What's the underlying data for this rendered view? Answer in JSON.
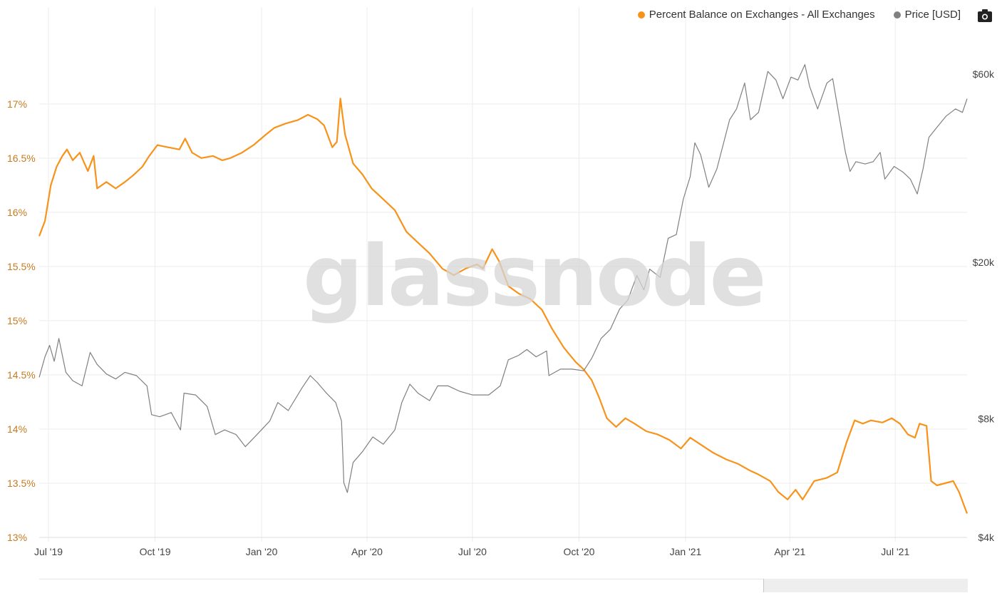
{
  "legend": {
    "series1_label": "Percent Balance on Exchanges - All Exchanges",
    "series2_label": "Price [USD]"
  },
  "watermark": "glassnode",
  "colors": {
    "balance": "#f7931a",
    "price": "#808080",
    "grid": "#ececec",
    "left_axis_text": "#c77a1f",
    "right_axis_text": "#444444"
  },
  "chart_data": {
    "type": "line",
    "x_range": [
      "2019-06-23",
      "2021-09-01"
    ],
    "x_ticks": [
      {
        "date": "2019-07-01",
        "label": "Jul '19"
      },
      {
        "date": "2019-10-01",
        "label": "Oct '19"
      },
      {
        "date": "2020-01-01",
        "label": "Jan '20"
      },
      {
        "date": "2020-04-01",
        "label": "Apr '20"
      },
      {
        "date": "2020-07-01",
        "label": "Jul '20"
      },
      {
        "date": "2020-10-01",
        "label": "Oct '20"
      },
      {
        "date": "2021-01-01",
        "label": "Jan '21"
      },
      {
        "date": "2021-04-01",
        "label": "Apr '21"
      },
      {
        "date": "2021-07-01",
        "label": "Jul '21"
      }
    ],
    "left_axis": {
      "min": 13,
      "max": 17.4,
      "ticks": [
        13,
        13.5,
        14,
        14.5,
        15,
        15.5,
        16,
        16.5,
        17
      ],
      "tick_labels": [
        "13%",
        "13.5%",
        "14%",
        "14.5%",
        "15%",
        "15.5%",
        "16%",
        "16.5%",
        "17%"
      ]
    },
    "right_axis": {
      "scale": "log",
      "min": 4000,
      "max": 65000,
      "ticks": [
        4000,
        8000,
        20000,
        60000
      ],
      "tick_labels": [
        "$4k",
        "$8k",
        "$20k",
        "$60k"
      ]
    },
    "grid": true,
    "legend_position": "top-right",
    "series": [
      {
        "name": "Percent Balance on Exchanges - All Exchanges",
        "axis": "left",
        "color": "#f7931a",
        "points": [
          [
            "2019-06-23",
            15.78
          ],
          [
            "2019-06-28",
            15.92
          ],
          [
            "2019-07-03",
            16.25
          ],
          [
            "2019-07-08",
            16.42
          ],
          [
            "2019-07-13",
            16.52
          ],
          [
            "2019-07-17",
            16.58
          ],
          [
            "2019-07-22",
            16.48
          ],
          [
            "2019-07-28",
            16.55
          ],
          [
            "2019-08-04",
            16.38
          ],
          [
            "2019-08-09",
            16.52
          ],
          [
            "2019-08-12",
            16.22
          ],
          [
            "2019-08-20",
            16.28
          ],
          [
            "2019-08-28",
            16.22
          ],
          [
            "2019-09-05",
            16.28
          ],
          [
            "2019-09-12",
            16.34
          ],
          [
            "2019-09-20",
            16.42
          ],
          [
            "2019-09-26",
            16.52
          ],
          [
            "2019-10-03",
            16.62
          ],
          [
            "2019-10-12",
            16.6
          ],
          [
            "2019-10-22",
            16.58
          ],
          [
            "2019-10-27",
            16.68
          ],
          [
            "2019-11-02",
            16.55
          ],
          [
            "2019-11-10",
            16.5
          ],
          [
            "2019-11-20",
            16.52
          ],
          [
            "2019-11-28",
            16.48
          ],
          [
            "2019-12-05",
            16.5
          ],
          [
            "2019-12-15",
            16.55
          ],
          [
            "2019-12-25",
            16.62
          ],
          [
            "2020-01-05",
            16.72
          ],
          [
            "2020-01-12",
            16.78
          ],
          [
            "2020-01-22",
            16.82
          ],
          [
            "2020-02-01",
            16.85
          ],
          [
            "2020-02-10",
            16.9
          ],
          [
            "2020-02-18",
            16.86
          ],
          [
            "2020-02-24",
            16.8
          ],
          [
            "2020-03-02",
            16.6
          ],
          [
            "2020-03-06",
            16.65
          ],
          [
            "2020-03-09",
            17.05
          ],
          [
            "2020-03-13",
            16.72
          ],
          [
            "2020-03-20",
            16.45
          ],
          [
            "2020-03-28",
            16.35
          ],
          [
            "2020-04-05",
            16.22
          ],
          [
            "2020-04-15",
            16.12
          ],
          [
            "2020-04-25",
            16.02
          ],
          [
            "2020-05-05",
            15.82
          ],
          [
            "2020-05-15",
            15.72
          ],
          [
            "2020-05-25",
            15.62
          ],
          [
            "2020-06-05",
            15.48
          ],
          [
            "2020-06-15",
            15.42
          ],
          [
            "2020-06-25",
            15.48
          ],
          [
            "2020-07-05",
            15.52
          ],
          [
            "2020-07-10",
            15.48
          ],
          [
            "2020-07-18",
            15.66
          ],
          [
            "2020-07-24",
            15.55
          ],
          [
            "2020-08-01",
            15.32
          ],
          [
            "2020-08-10",
            15.25
          ],
          [
            "2020-08-20",
            15.2
          ],
          [
            "2020-08-30",
            15.1
          ],
          [
            "2020-09-08",
            14.92
          ],
          [
            "2020-09-18",
            14.75
          ],
          [
            "2020-09-28",
            14.62
          ],
          [
            "2020-10-05",
            14.55
          ],
          [
            "2020-10-12",
            14.45
          ],
          [
            "2020-10-18",
            14.3
          ],
          [
            "2020-10-25",
            14.1
          ],
          [
            "2020-11-02",
            14.02
          ],
          [
            "2020-11-10",
            14.1
          ],
          [
            "2020-11-18",
            14.05
          ],
          [
            "2020-11-28",
            13.98
          ],
          [
            "2020-12-08",
            13.95
          ],
          [
            "2020-12-18",
            13.9
          ],
          [
            "2020-12-28",
            13.82
          ],
          [
            "2021-01-05",
            13.92
          ],
          [
            "2021-01-15",
            13.85
          ],
          [
            "2021-01-25",
            13.78
          ],
          [
            "2021-02-05",
            13.72
          ],
          [
            "2021-02-15",
            13.68
          ],
          [
            "2021-02-25",
            13.62
          ],
          [
            "2021-03-05",
            13.58
          ],
          [
            "2021-03-15",
            13.52
          ],
          [
            "2021-03-22",
            13.42
          ],
          [
            "2021-03-30",
            13.35
          ],
          [
            "2021-04-06",
            13.44
          ],
          [
            "2021-04-12",
            13.35
          ],
          [
            "2021-04-22",
            13.52
          ],
          [
            "2021-05-03",
            13.55
          ],
          [
            "2021-05-12",
            13.6
          ],
          [
            "2021-05-20",
            13.88
          ],
          [
            "2021-05-27",
            14.08
          ],
          [
            "2021-06-03",
            14.05
          ],
          [
            "2021-06-10",
            14.08
          ],
          [
            "2021-06-20",
            14.06
          ],
          [
            "2021-06-28",
            14.1
          ],
          [
            "2021-07-05",
            14.05
          ],
          [
            "2021-07-12",
            13.95
          ],
          [
            "2021-07-18",
            13.92
          ],
          [
            "2021-07-22",
            14.05
          ],
          [
            "2021-07-28",
            14.03
          ],
          [
            "2021-08-01",
            13.52
          ],
          [
            "2021-08-06",
            13.48
          ],
          [
            "2021-08-13",
            13.5
          ],
          [
            "2021-08-20",
            13.52
          ],
          [
            "2021-08-25",
            13.42
          ],
          [
            "2021-09-01",
            13.22
          ]
        ]
      },
      {
        "name": "Price [USD]",
        "axis": "right",
        "color": "#808080",
        "points": [
          [
            "2019-06-23",
            10200
          ],
          [
            "2019-06-28",
            11500
          ],
          [
            "2019-07-02",
            12300
          ],
          [
            "2019-07-06",
            11200
          ],
          [
            "2019-07-10",
            12800
          ],
          [
            "2019-07-16",
            10500
          ],
          [
            "2019-07-22",
            10000
          ],
          [
            "2019-07-30",
            9700
          ],
          [
            "2019-08-06",
            11800
          ],
          [
            "2019-08-12",
            11000
          ],
          [
            "2019-08-20",
            10400
          ],
          [
            "2019-08-28",
            10100
          ],
          [
            "2019-09-05",
            10500
          ],
          [
            "2019-09-15",
            10300
          ],
          [
            "2019-09-24",
            9700
          ],
          [
            "2019-09-28",
            8200
          ],
          [
            "2019-10-05",
            8100
          ],
          [
            "2019-10-15",
            8300
          ],
          [
            "2019-10-23",
            7500
          ],
          [
            "2019-10-26",
            9300
          ],
          [
            "2019-11-05",
            9200
          ],
          [
            "2019-11-15",
            8600
          ],
          [
            "2019-11-22",
            7300
          ],
          [
            "2019-11-30",
            7500
          ],
          [
            "2019-12-10",
            7300
          ],
          [
            "2019-12-18",
            6800
          ],
          [
            "2019-12-28",
            7300
          ],
          [
            "2020-01-08",
            7900
          ],
          [
            "2020-01-15",
            8800
          ],
          [
            "2020-01-24",
            8400
          ],
          [
            "2020-02-05",
            9600
          ],
          [
            "2020-02-12",
            10300
          ],
          [
            "2020-02-18",
            9900
          ],
          [
            "2020-02-26",
            9300
          ],
          [
            "2020-03-05",
            8800
          ],
          [
            "2020-03-10",
            7900
          ],
          [
            "2020-03-12",
            5500
          ],
          [
            "2020-03-15",
            5200
          ],
          [
            "2020-03-20",
            6200
          ],
          [
            "2020-03-28",
            6600
          ],
          [
            "2020-04-06",
            7200
          ],
          [
            "2020-04-15",
            6900
          ],
          [
            "2020-04-25",
            7500
          ],
          [
            "2020-05-01",
            8800
          ],
          [
            "2020-05-08",
            9800
          ],
          [
            "2020-05-15",
            9300
          ],
          [
            "2020-05-25",
            8900
          ],
          [
            "2020-06-01",
            9700
          ],
          [
            "2020-06-10",
            9700
          ],
          [
            "2020-06-20",
            9400
          ],
          [
            "2020-07-01",
            9200
          ],
          [
            "2020-07-15",
            9200
          ],
          [
            "2020-07-25",
            9700
          ],
          [
            "2020-08-01",
            11300
          ],
          [
            "2020-08-10",
            11600
          ],
          [
            "2020-08-17",
            12000
          ],
          [
            "2020-08-25",
            11500
          ],
          [
            "2020-09-03",
            11900
          ],
          [
            "2020-09-05",
            10300
          ],
          [
            "2020-09-15",
            10700
          ],
          [
            "2020-09-25",
            10700
          ],
          [
            "2020-10-05",
            10600
          ],
          [
            "2020-10-12",
            11400
          ],
          [
            "2020-10-20",
            12800
          ],
          [
            "2020-10-28",
            13500
          ],
          [
            "2020-11-05",
            15200
          ],
          [
            "2020-11-12",
            16000
          ],
          [
            "2020-11-20",
            18500
          ],
          [
            "2020-11-26",
            17000
          ],
          [
            "2020-12-01",
            19200
          ],
          [
            "2020-12-10",
            18300
          ],
          [
            "2020-12-17",
            23000
          ],
          [
            "2020-12-24",
            23500
          ],
          [
            "2020-12-30",
            28900
          ],
          [
            "2021-01-05",
            33000
          ],
          [
            "2021-01-09",
            40200
          ],
          [
            "2021-01-14",
            37500
          ],
          [
            "2021-01-21",
            31000
          ],
          [
            "2021-01-28",
            34500
          ],
          [
            "2021-02-08",
            46000
          ],
          [
            "2021-02-14",
            49000
          ],
          [
            "2021-02-21",
            57000
          ],
          [
            "2021-02-26",
            46000
          ],
          [
            "2021-03-05",
            48000
          ],
          [
            "2021-03-13",
            61000
          ],
          [
            "2021-03-20",
            58000
          ],
          [
            "2021-03-26",
            52000
          ],
          [
            "2021-04-02",
            59000
          ],
          [
            "2021-04-08",
            58000
          ],
          [
            "2021-04-14",
            63500
          ],
          [
            "2021-04-18",
            56000
          ],
          [
            "2021-04-25",
            49000
          ],
          [
            "2021-05-03",
            57000
          ],
          [
            "2021-05-08",
            58500
          ],
          [
            "2021-05-12",
            50000
          ],
          [
            "2021-05-19",
            38000
          ],
          [
            "2021-05-23",
            34000
          ],
          [
            "2021-05-28",
            36000
          ],
          [
            "2021-06-05",
            35500
          ],
          [
            "2021-06-12",
            36000
          ],
          [
            "2021-06-18",
            38000
          ],
          [
            "2021-06-22",
            32500
          ],
          [
            "2021-06-30",
            35000
          ],
          [
            "2021-07-08",
            33800
          ],
          [
            "2021-07-14",
            32500
          ],
          [
            "2021-07-20",
            29800
          ],
          [
            "2021-07-25",
            34500
          ],
          [
            "2021-07-30",
            41500
          ],
          [
            "2021-08-06",
            44000
          ],
          [
            "2021-08-14",
            47000
          ],
          [
            "2021-08-22",
            49000
          ],
          [
            "2021-08-28",
            48000
          ],
          [
            "2021-09-01",
            52000
          ]
        ]
      }
    ]
  }
}
